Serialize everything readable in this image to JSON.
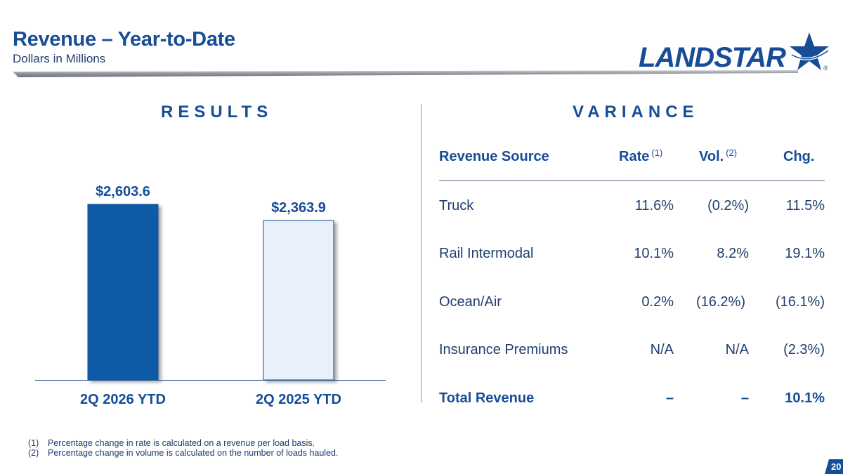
{
  "header": {
    "title": "Revenue – Year-to-Date",
    "subtitle": "Dollars in Millions",
    "logo_text": "LANDSTAR",
    "logo_reg": "®"
  },
  "results": {
    "heading": "RESULTS"
  },
  "chart_data": {
    "type": "bar",
    "title": "",
    "xlabel": "",
    "ylabel": "",
    "categories": [
      "2Q 2026 YTD",
      "2Q 2025 YTD"
    ],
    "values": [
      2603.6,
      2363.9
    ],
    "data_labels": [
      "$2,603.6",
      "$2,363.9"
    ],
    "bar_colors": [
      "#0d5aa7",
      "#e8f1fa"
    ],
    "ylim": [
      0,
      2603.6
    ],
    "grid": false,
    "legend": "none"
  },
  "variance": {
    "heading": "VARIANCE",
    "headers": {
      "source": "Revenue Source",
      "rate": "Rate",
      "rate_note": "(1)",
      "vol": "Vol.",
      "vol_note": "(2)",
      "chg": "Chg."
    },
    "rows": [
      {
        "source": "Truck",
        "rate": "11.6%",
        "vol": "(0.2%)",
        "chg": "11.5%"
      },
      {
        "source": "Rail Intermodal",
        "rate": "10.1%",
        "vol": "8.2%",
        "chg": "19.1%"
      },
      {
        "source": "Ocean/Air",
        "rate": "0.2%",
        "vol": "(16.2%)",
        "chg": "(16.1%)"
      },
      {
        "source": "Insurance Premiums",
        "rate": "N/A",
        "vol": "N/A",
        "chg": "(2.3%)"
      },
      {
        "source": "Total Revenue",
        "rate": "–",
        "vol": "–",
        "chg": "10.1%"
      }
    ]
  },
  "footnotes": [
    {
      "num": "(1)",
      "text": "Percentage change in rate is calculated on a revenue per load basis."
    },
    {
      "num": "(2)",
      "text": "Percentage change in volume is calculated on the number of loads hauled."
    }
  ],
  "page_number": "20",
  "colors": {
    "brand_blue": "#164d96",
    "bar_dark": "#0d5aa7",
    "bar_light": "#e8f1fa",
    "text": "#1f3e6e"
  },
  "icons": {
    "logo_mark": "star-icon"
  }
}
